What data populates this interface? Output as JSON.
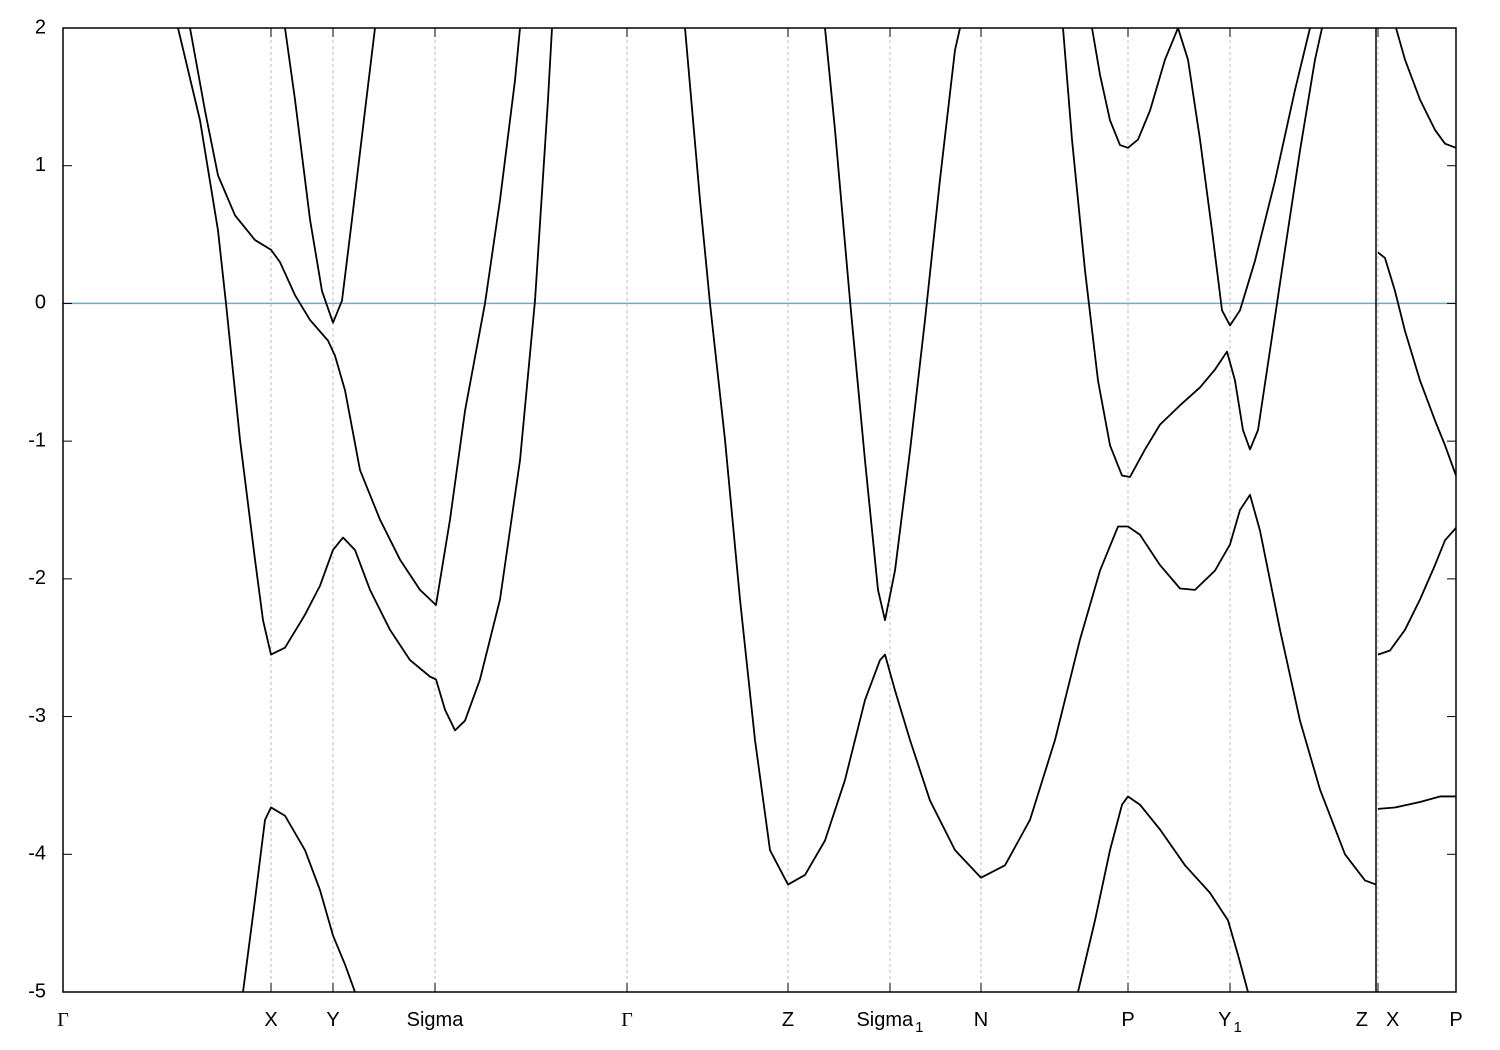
{
  "chart_data": {
    "type": "line",
    "xlim": [
      0,
      13.93
    ],
    "ylim": [
      -5,
      2
    ],
    "yticks": [
      -5,
      -4,
      -3,
      -2,
      -1,
      0,
      1,
      2
    ],
    "xticks": [
      {
        "value": 0,
        "label": "Γ"
      },
      {
        "value": 2.08,
        "label": "X"
      },
      {
        "value": 2.7,
        "label": "Y"
      },
      {
        "value": 3.72,
        "label": "Sigma"
      },
      {
        "value": 5.64,
        "label": "Γ"
      },
      {
        "value": 7.25,
        "label": "Z"
      },
      {
        "value": 8.27,
        "label": "Sigma",
        "sub": "1"
      },
      {
        "value": 9.18,
        "label": "N"
      },
      {
        "value": 10.65,
        "label": "P"
      },
      {
        "value": 11.67,
        "label": "Y",
        "sub": "1"
      },
      {
        "value": 13.13,
        "label": "Z"
      },
      {
        "value": 13.15,
        "label": "X"
      },
      {
        "value": 13.93,
        "label": "P"
      }
    ],
    "grid": true,
    "fermi_level": {
      "value": 0,
      "color": "#5ab4c8"
    },
    "series": [
      {
        "color": "#000000",
        "x": [
          1.15,
          1.37,
          1.55,
          1.63,
          1.77,
          1.92,
          2.0,
          2.08,
          2.22,
          2.42,
          2.57,
          2.7,
          2.8,
          2.92,
          3.07,
          3.27,
          3.47,
          3.67,
          3.73,
          3.82,
          3.92,
          4.02,
          4.17,
          4.37,
          4.57,
          4.72,
          4.85,
          4.89
        ],
        "values": [
          2.0,
          1.33,
          0.53,
          0,
          -0.99,
          -1.86,
          -2.3,
          -2.55,
          -2.5,
          -2.26,
          -2.05,
          -1.79,
          -1.7,
          -1.79,
          -2.08,
          -2.37,
          -2.59,
          -2.71,
          -2.73,
          -2.95,
          -3.1,
          -3.03,
          -2.73,
          -2.15,
          -1.14,
          0.02,
          1.48,
          2.0
        ]
      },
      {
        "color": "#000000",
        "x": [
          1.27,
          1.42,
          1.55,
          1.72,
          1.92,
          2.08,
          2.17,
          2.32,
          2.47,
          2.65,
          2.72,
          2.82,
          2.97,
          3.17,
          3.37,
          3.57,
          3.73,
          3.87,
          4.02,
          4.22,
          4.37,
          4.52,
          4.57
        ],
        "values": [
          2.0,
          1.4,
          0.93,
          0.64,
          0.46,
          0.39,
          0.3,
          0.06,
          -0.12,
          -0.27,
          -0.38,
          -0.63,
          -1.21,
          -1.57,
          -1.86,
          -2.08,
          -2.19,
          -1.57,
          -0.78,
          0,
          0.75,
          1.62,
          2.0
        ]
      },
      {
        "color": "#000000",
        "x": [
          2.22,
          2.32,
          2.47,
          2.59,
          2.7,
          2.79,
          2.89,
          3.02,
          3.12
        ],
        "values": [
          2.0,
          1.48,
          0.61,
          0.09,
          -0.14,
          0.02,
          0.61,
          1.4,
          2.0
        ]
      },
      {
        "color": "#000000",
        "x": [
          1.8,
          1.92,
          2.02,
          2.08,
          2.22,
          2.42,
          2.57,
          2.7,
          2.82,
          2.92
        ],
        "values": [
          -5.0,
          -4.33,
          -3.75,
          -3.66,
          -3.72,
          -3.97,
          -4.26,
          -4.59,
          -4.8,
          -5.0
        ]
      },
      {
        "color": "#000000",
        "x": [
          6.22,
          6.37,
          6.47,
          6.62,
          6.77,
          6.92,
          7.07,
          7.25,
          7.42,
          7.62,
          7.82,
          8.02,
          8.17,
          8.22,
          8.32,
          8.47,
          8.67,
          8.92,
          9.18,
          9.42,
          9.67,
          9.92,
          10.17,
          10.37,
          10.55,
          10.65,
          10.77,
          10.97,
          11.17,
          11.32,
          11.52,
          11.67,
          11.77,
          11.87,
          11.97,
          12.17,
          12.37,
          12.57,
          12.82,
          13.02,
          13.13
        ],
        "values": [
          2.0,
          0.75,
          0,
          -0.99,
          -2.15,
          -3.17,
          -3.97,
          -4.22,
          -4.15,
          -3.9,
          -3.46,
          -2.88,
          -2.59,
          -2.55,
          -2.81,
          -3.17,
          -3.61,
          -3.97,
          -4.17,
          -4.08,
          -3.75,
          -3.17,
          -2.44,
          -1.94,
          -1.62,
          -1.62,
          -1.68,
          -1.9,
          -2.07,
          -2.08,
          -1.94,
          -1.75,
          -1.5,
          -1.39,
          -1.65,
          -2.37,
          -3.03,
          -3.53,
          -4.0,
          -4.19,
          -4.22
        ]
      },
      {
        "color": "#000000",
        "x": [
          7.62,
          7.72,
          7.87,
          8.02,
          8.15,
          8.22,
          8.32,
          8.47,
          8.62,
          8.77,
          8.92,
          8.97
        ],
        "values": [
          2.0,
          1.26,
          0.02,
          -1.14,
          -2.08,
          -2.3,
          -1.94,
          -1.07,
          -0.12,
          0.9,
          1.84,
          2.0
        ]
      },
      {
        "color": "#000000",
        "x": [
          10.15,
          10.32,
          10.47,
          10.59,
          10.65,
          10.77,
          10.97,
          11.22,
          11.47,
          11.65,
          11.75,
          11.85
        ],
        "values": [
          -5.0,
          -4.48,
          -3.97,
          -3.64,
          -3.58,
          -3.64,
          -3.82,
          -4.08,
          -4.28,
          -4.48,
          -4.73,
          -5.0
        ]
      },
      {
        "color": "#000000",
        "x": [
          10.0,
          10.09,
          10.22,
          10.35,
          10.47,
          10.59,
          10.67,
          10.82,
          10.97,
          11.17,
          11.37,
          11.52,
          11.64,
          11.72,
          11.8,
          11.87,
          11.95,
          12.07,
          12.22,
          12.37,
          12.52,
          12.59
        ],
        "values": [
          2.0,
          1.19,
          0.24,
          -0.56,
          -1.03,
          -1.25,
          -1.26,
          -1.06,
          -0.88,
          -0.74,
          -0.61,
          -0.48,
          -0.35,
          -0.56,
          -0.92,
          -1.06,
          -0.92,
          -0.34,
          0.39,
          1.11,
          1.77,
          2.0
        ]
      },
      {
        "color": "#000000",
        "x": [
          10.29,
          10.37,
          10.47,
          10.57,
          10.65,
          10.75,
          10.87,
          11.02,
          11.15,
          11.25,
          11.37,
          11.49,
          11.59,
          11.67,
          11.77,
          11.92,
          12.12,
          12.32,
          12.47
        ],
        "values": [
          2.0,
          1.66,
          1.33,
          1.15,
          1.13,
          1.19,
          1.4,
          1.77,
          2.0,
          1.77,
          1.19,
          0.53,
          -0.05,
          -0.16,
          -0.05,
          0.31,
          0.89,
          1.55,
          2.0
        ]
      },
      {
        "color": "#000000",
        "x": [
          13.15,
          13.22,
          13.32,
          13.42,
          13.57,
          13.72,
          13.82,
          13.93
        ],
        "values": [
          0.37,
          0.33,
          0.09,
          -0.2,
          -0.56,
          -0.85,
          -1.03,
          -1.25
        ]
      },
      {
        "color": "#000000",
        "x": [
          13.33,
          13.42,
          13.57,
          13.72,
          13.82,
          13.93
        ],
        "values": [
          2.0,
          1.77,
          1.48,
          1.26,
          1.16,
          1.13
        ]
      },
      {
        "color": "#000000",
        "x": [
          13.15,
          13.27,
          13.42,
          13.57,
          13.72,
          13.82,
          13.93
        ],
        "values": [
          -2.55,
          -2.52,
          -2.37,
          -2.15,
          -1.9,
          -1.72,
          -1.63
        ]
      },
      {
        "color": "#000000",
        "x": [
          13.15,
          13.32,
          13.57,
          13.77,
          13.93
        ],
        "values": [
          -3.67,
          -3.66,
          -3.62,
          -3.58,
          -3.58
        ]
      }
    ]
  }
}
